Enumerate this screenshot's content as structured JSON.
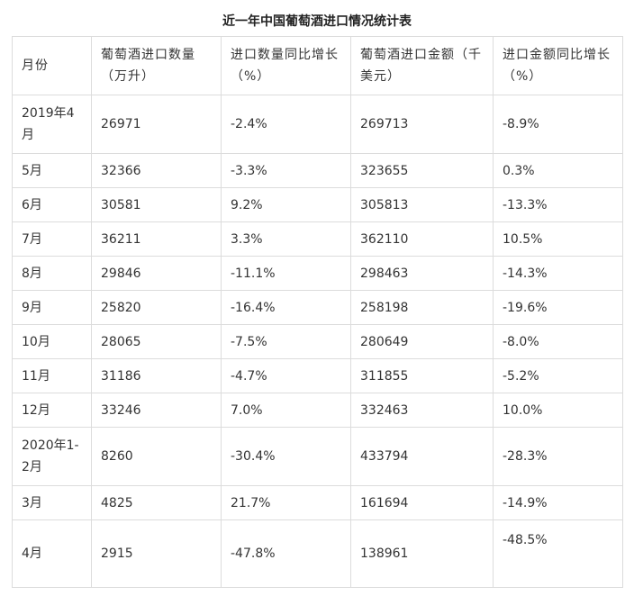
{
  "title": "近一年中国葡萄酒进口情况统计表",
  "columns": [
    "月份",
    "葡萄酒进口数量（万升）",
    "进口数量同比增长（%）",
    "葡萄酒进口金额（千美元）",
    "进口金额同比增长（%）"
  ],
  "rows": [
    [
      "2019年4月",
      "26971",
      "-2.4%",
      "269713",
      "-8.9%"
    ],
    [
      "5月",
      "32366",
      "-3.3%",
      "323655",
      "0.3%"
    ],
    [
      "6月",
      "30581",
      "9.2%",
      "305813",
      "-13.3%"
    ],
    [
      "7月",
      "36211",
      "3.3%",
      "362110",
      "10.5%"
    ],
    [
      "8月",
      "29846",
      "-11.1%",
      "298463",
      "-14.3%"
    ],
    [
      "9月",
      "25820",
      "-16.4%",
      "258198",
      "-19.6%"
    ],
    [
      "10月",
      "28065",
      "-7.5%",
      "280649",
      "-8.0%"
    ],
    [
      "11月",
      "31186",
      "-4.7%",
      "311855",
      "-5.2%"
    ],
    [
      "12月",
      "33246",
      "7.0%",
      "332463",
      "10.0%"
    ],
    [
      "2020年1-2月",
      "8260",
      "-30.4%",
      "433794",
      "-28.3%"
    ],
    [
      "3月",
      "4825",
      "21.7%",
      "161694",
      "-14.9%"
    ],
    [
      "4月",
      "2915",
      "-47.8%",
      "138961",
      "-48.5%"
    ]
  ]
}
